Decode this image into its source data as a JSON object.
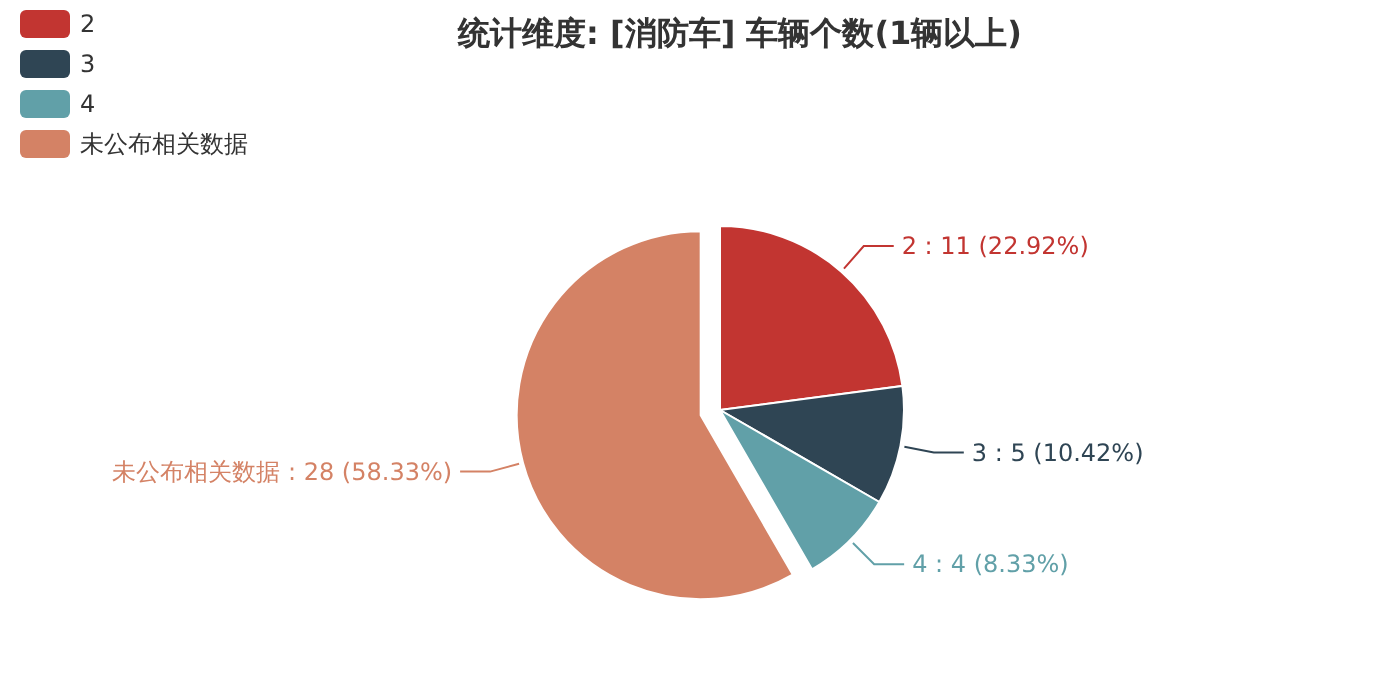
{
  "chart_data": {
    "type": "pie",
    "title": "统计维度: [消防车] 车辆个数(1辆以上)",
    "categories": [
      "2",
      "3",
      "4",
      "未公布相关数据"
    ],
    "values": [
      11,
      5,
      4,
      28
    ],
    "colors": [
      "#c23531",
      "#2f4554",
      "#61a0a8",
      "#d48265"
    ],
    "value_labels": [
      "2 : 11 (22.92%)",
      "3 : 5 (10.42%)",
      "4 : 4 (8.33%)",
      "未公布相关数据 : 28 (58.33%)"
    ],
    "legend": "top left"
  }
}
